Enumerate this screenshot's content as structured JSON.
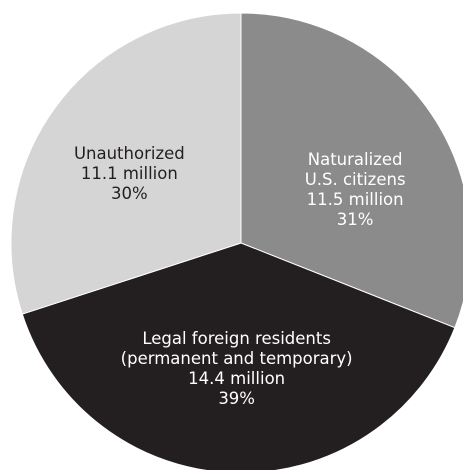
{
  "chart_data": {
    "type": "pie",
    "categories": [
      "Naturalized U.S. citizens",
      "Legal foreign residents (permanent and temporary)",
      "Unauthorized"
    ],
    "amount_labels": [
      "11.5 million",
      "14.4 million",
      "11.1 million"
    ],
    "values": [
      31,
      39,
      30
    ],
    "value_labels": [
      "31%",
      "39%",
      "30%"
    ],
    "colors": [
      "#8b8b8b",
      "#231f20",
      "#d5d5d5"
    ]
  }
}
